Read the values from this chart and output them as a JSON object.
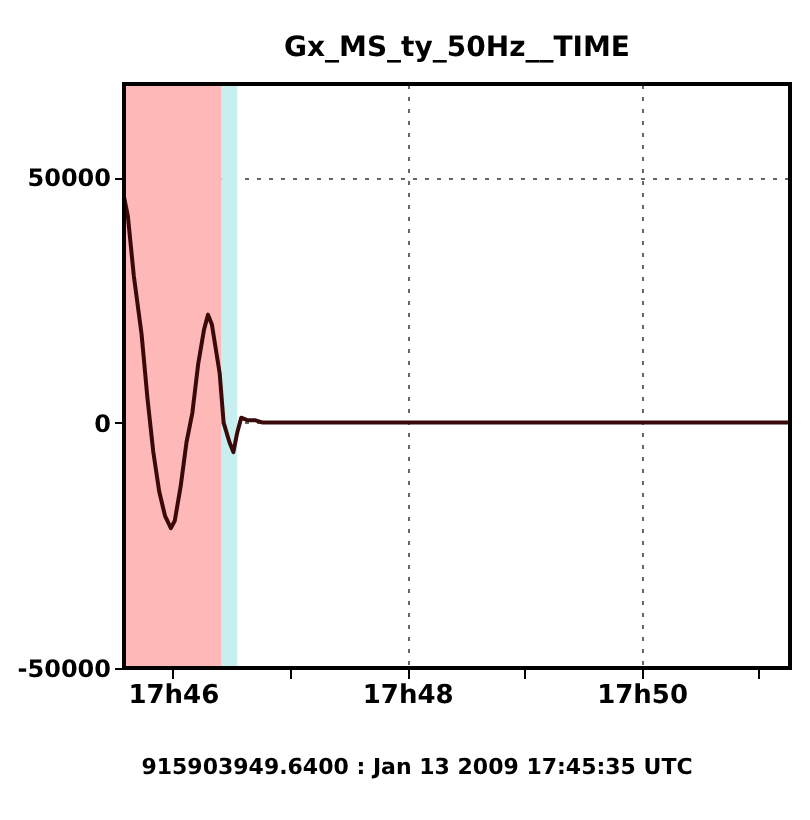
{
  "chart_data": {
    "type": "line",
    "title": "Gx_MS_ty_50Hz__TIME",
    "x": [
      "2009-01-13T17:45:35",
      "2009-01-13T17:45:37",
      "2009-01-13T17:45:40",
      "2009-01-13T17:45:44",
      "2009-01-13T17:45:47",
      "2009-01-13T17:45:50",
      "2009-01-13T17:45:53",
      "2009-01-13T17:45:56",
      "2009-01-13T17:45:59",
      "2009-01-13T17:46:01",
      "2009-01-13T17:46:04",
      "2009-01-13T17:46:07",
      "2009-01-13T17:46:10",
      "2009-01-13T17:46:13",
      "2009-01-13T17:46:16",
      "2009-01-13T17:46:18",
      "2009-01-13T17:46:20",
      "2009-01-13T17:46:24",
      "2009-01-13T17:46:26",
      "2009-01-13T17:46:29",
      "2009-01-13T17:46:31",
      "2009-01-13T17:46:33",
      "2009-01-13T17:46:35",
      "2009-01-13T17:46:38",
      "2009-01-13T17:46:42",
      "2009-01-13T17:46:46",
      "2009-01-13T17:51:16"
    ],
    "series": [
      {
        "color": "#3a0a0a",
        "values": [
          46000,
          42000,
          30000,
          18000,
          5000,
          -6000,
          -14000,
          -19000,
          -21500,
          -20000,
          -13000,
          -4000,
          2000,
          12000,
          19000,
          22000,
          20000,
          10000,
          0,
          -4000,
          -6000,
          -2000,
          1000,
          500,
          500,
          0,
          0
        ]
      }
    ],
    "xlim": [
      "2009-01-13T17:45:35",
      "2009-01-13T17:51:16"
    ],
    "xticks": [
      {
        "value": "2009-01-13T17:46",
        "label": "17h46"
      },
      {
        "value": "2009-01-13T17:47",
        "label": null
      },
      {
        "value": "2009-01-13T17:48",
        "label": "17h48"
      },
      {
        "value": "2009-01-13T17:49",
        "label": null
      },
      {
        "value": "2009-01-13T17:50",
        "label": "17h50"
      },
      {
        "value": "2009-01-13T17:51",
        "label": null
      }
    ],
    "ylim": [
      -50000,
      69000
    ],
    "yticks": [
      -50000,
      0,
      50000
    ],
    "bands": [
      {
        "axis": "x",
        "from": "2009-01-13T17:45:35",
        "to": "2009-01-13T17:46:25",
        "color": "#ffb8b8"
      },
      {
        "axis": "x",
        "from": "2009-01-13T17:46:25",
        "to": "2009-01-13T17:46:33",
        "color": "#c8efef"
      }
    ],
    "grid": true,
    "line_style": "solid",
    "marker": "none",
    "annotations": [
      "915903949.6400 : Jan 13 2009 17:45:35 UTC"
    ]
  }
}
